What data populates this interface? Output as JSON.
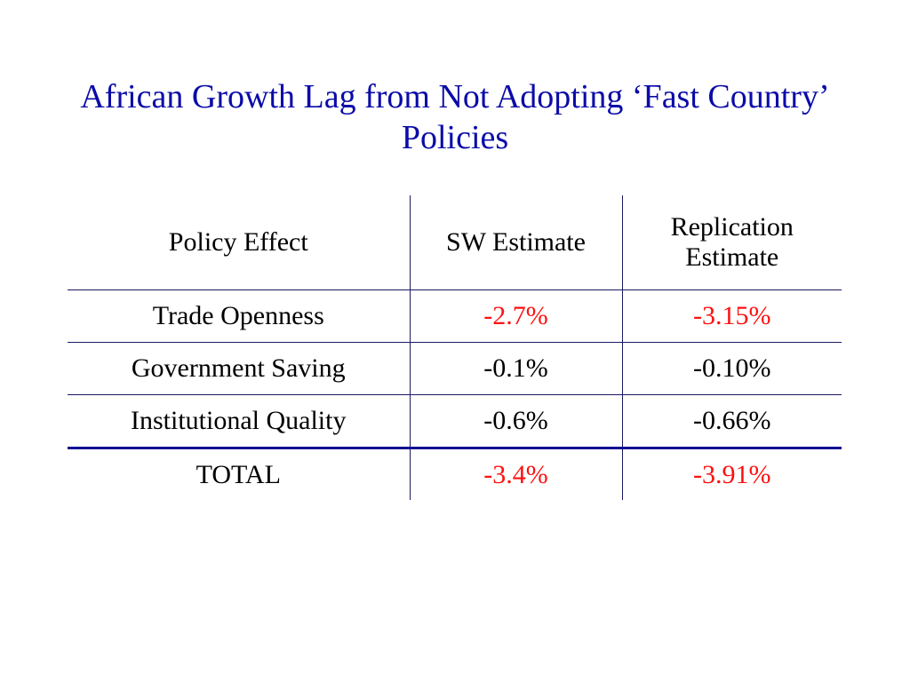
{
  "slide": {
    "title": "African Growth Lag from Not Adopting ‘Fast Country’ Policies"
  },
  "table": {
    "headers": {
      "col1": "Policy Effect",
      "col2": "SW Estimate",
      "col3_line1": "Replication",
      "col3_line2": "Estimate"
    },
    "rows": [
      {
        "label": "Trade Openness",
        "sw": "-2.7%",
        "rep": "-3.15%"
      },
      {
        "label": "Government Saving",
        "sw": "-0.1%",
        "rep": "-0.10%"
      },
      {
        "label": "Institutional Quality",
        "sw": "-0.6%",
        "rep": "-0.66%"
      }
    ],
    "total": {
      "label": "TOTAL",
      "sw": "-3.4%",
      "rep": "-3.91%"
    }
  },
  "colors": {
    "title": "#0b0ba8",
    "highlight": "#ff1010",
    "rules": "#1a1a60"
  }
}
